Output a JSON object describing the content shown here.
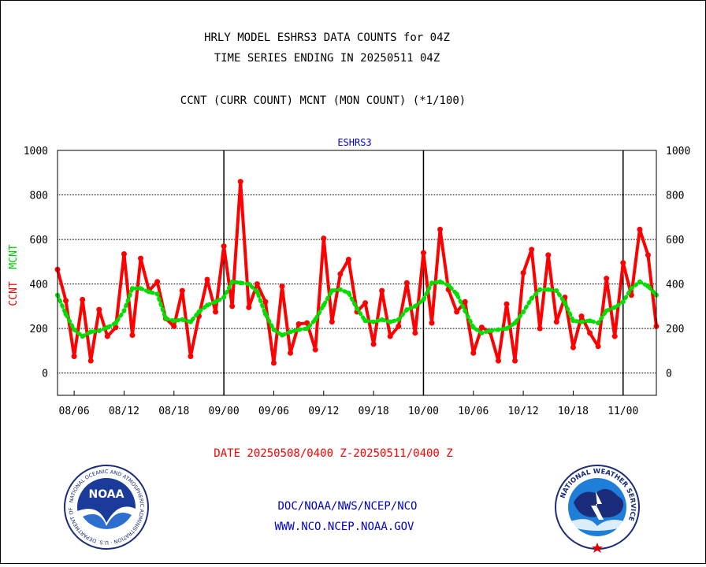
{
  "header": {
    "line1": "HRLY MODEL ESHRS3 DATA COUNTS for 04Z",
    "line2": "TIME SERIES ENDING IN 20250511 04Z",
    "subtitle": "CCNT (CURR COUNT) MCNT (MON COUNT) (*1/100)"
  },
  "chart_data": {
    "type": "line",
    "title": "ESHRS3",
    "ylabel_left": "CCNT",
    "ylabel_right": "MCNT",
    "xlabel": "DATE 20250508/0400 Z-20250511/0400 Z",
    "ylim": [
      -100,
      1000
    ],
    "y_ticks": [
      0,
      200,
      400,
      600,
      800,
      1000
    ],
    "x_tick_labels": [
      "08/06",
      "08/12",
      "08/18",
      "09/00",
      "09/06",
      "09/12",
      "09/18",
      "10/00",
      "10/06",
      "10/12",
      "10/18",
      "11/00"
    ],
    "grid": true,
    "series": [
      {
        "name": "CCNT",
        "color": "#ff0000",
        "values": [
          465,
          325,
          75,
          330,
          55,
          285,
          165,
          205,
          535,
          170,
          515,
          370,
          410,
          245,
          210,
          370,
          75,
          255,
          420,
          275,
          570,
          300,
          860,
          295,
          400,
          320,
          45,
          390,
          90,
          220,
          225,
          105,
          605,
          230,
          445,
          510,
          275,
          315,
          130,
          370,
          165,
          210,
          405,
          180,
          540,
          225,
          645,
          375,
          275,
          320,
          90,
          205,
          185,
          55,
          310,
          55,
          450,
          555,
          200,
          530,
          230,
          340,
          115,
          255,
          180,
          120,
          425,
          165,
          495,
          350,
          645,
          530,
          210
        ]
      },
      {
        "name": "MCNT",
        "color": "#00dd00",
        "values": [
          350,
          265,
          195,
          165,
          185,
          190,
          205,
          225,
          280,
          380,
          380,
          365,
          355,
          245,
          235,
          240,
          230,
          275,
          305,
          320,
          340,
          410,
          405,
          400,
          365,
          265,
          195,
          170,
          185,
          195,
          200,
          240,
          305,
          370,
          375,
          360,
          290,
          235,
          230,
          240,
          230,
          240,
          285,
          300,
          330,
          405,
          410,
          395,
          355,
          280,
          205,
          180,
          190,
          195,
          200,
          225,
          275,
          335,
          375,
          375,
          370,
          315,
          235,
          230,
          235,
          225,
          280,
          295,
          320,
          380,
          410,
          390,
          350
        ]
      }
    ]
  },
  "footer": {
    "org": "DOC/NOAA/NWS/NCEP/NCO",
    "url": "WWW.NCO.NCEP.NOAA.GOV"
  },
  "logos": {
    "noaa": {
      "name": "noaa-logo",
      "text": "NOAA",
      "ring_text": "NATIONAL OCEANIC AND ATMOSPHERIC ADMINISTRATION · U.S. DEPARTMENT OF COMMERCE"
    },
    "nws": {
      "name": "nws-logo",
      "ring_text": "NATIONAL WEATHER SERVICE"
    }
  }
}
